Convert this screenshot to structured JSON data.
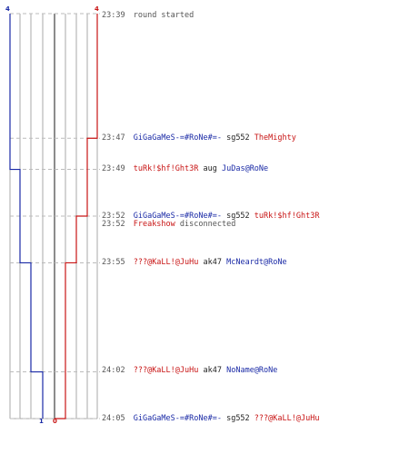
{
  "colors": {
    "team_blue": "#1a2aa6",
    "team_red": "#c81414",
    "grid": "#aaaaaa",
    "center_line": "#666666",
    "dash": "#bbbbbb"
  },
  "scores": {
    "blue_start": "4",
    "red_start": "4",
    "blue_end": "1",
    "red_end": "0"
  },
  "chart_data": {
    "type": "line",
    "x_unit": "clock time",
    "series": [
      {
        "color": "#1a2aa6",
        "points": [
          [
            "23:39",
            4
          ],
          [
            "23:49",
            3
          ],
          [
            "23:55",
            2
          ],
          [
            "24:02",
            1
          ]
        ]
      },
      {
        "color": "#c81414",
        "points": [
          [
            "23:39",
            4
          ],
          [
            "23:47",
            3
          ],
          [
            "23:52",
            2
          ],
          [
            "23:55",
            1
          ],
          [
            "24:05",
            0
          ]
        ]
      }
    ]
  },
  "events": [
    {
      "time": "23:39",
      "message": "round started"
    },
    {
      "time": "23:47",
      "killer": "GiGaGaMeS-=#RoNe#=-",
      "killer_team": "blue",
      "weapon": "sg552",
      "victim": "TheMighty",
      "victim_team": "red"
    },
    {
      "time": "23:49",
      "killer": "tuRk!$hf!Ght3R",
      "killer_team": "red",
      "weapon": "aug",
      "victim": "JuDas@RoNe",
      "victim_team": "blue"
    },
    {
      "time": "23:52",
      "killer": "GiGaGaMeS-=#RoNe#=-",
      "killer_team": "blue",
      "weapon": "sg552",
      "victim": "tuRk!$hf!Ght3R",
      "victim_team": "red"
    },
    {
      "time": "23:52",
      "player": "Freakshow",
      "player_team": "red",
      "message": "disconnected"
    },
    {
      "time": "23:55",
      "killer": "???@KaLL!@JuHu",
      "killer_team": "red",
      "weapon": "ak47",
      "victim": "McNeardt@RoNe",
      "victim_team": "blue"
    },
    {
      "time": "24:02",
      "killer": "???@KaLL!@JuHu",
      "killer_team": "red",
      "weapon": "ak47",
      "victim": "NoName@RoNe",
      "victim_team": "blue"
    },
    {
      "time": "24:05",
      "killer": "GiGaGaMeS-=#RoNe#=-",
      "killer_team": "blue",
      "weapon": "sg552",
      "victim": "???@KaLL!@JuHu",
      "victim_team": "red"
    }
  ]
}
